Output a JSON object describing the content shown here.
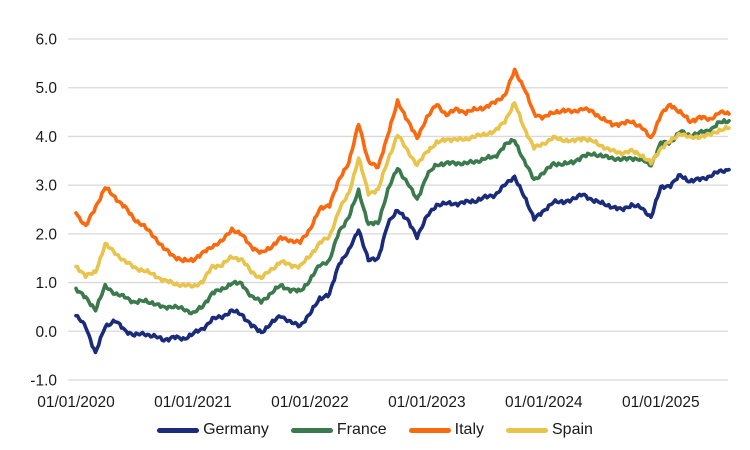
{
  "chart_data": {
    "type": "line",
    "title": "",
    "xlabel": "",
    "ylabel": "",
    "ylim": [
      -1.0,
      6.0
    ],
    "y_tick_labels": [
      "6.0",
      "5.0",
      "4.0",
      "3.0",
      "2.0",
      "1.0",
      "0.0",
      "-1.0"
    ],
    "x_tick_labels": [
      "01/01/2020",
      "01/01/2021",
      "01/01/2022",
      "01/01/2023",
      "01/01/2024",
      "01/01/2025"
    ],
    "x_frequency": "monthly",
    "x_start": "01/2020",
    "x_end": "08/2025",
    "grid": "horizontal",
    "legend_position": "bottom",
    "style": {
      "background": "#ffffff",
      "grid_color": "#d9d9d9",
      "text_color": "#1a1a1a",
      "line_width": 3.6,
      "noise_amplitude": 0.05
    },
    "series": [
      {
        "name": "Germany",
        "color": "#1a2b7a",
        "values": [
          0.32,
          0.1,
          -0.45,
          0.1,
          0.22,
          0.02,
          -0.08,
          -0.05,
          -0.1,
          -0.18,
          -0.12,
          -0.16,
          -0.05,
          0.05,
          0.25,
          0.3,
          0.42,
          0.35,
          0.12,
          -0.02,
          0.15,
          0.33,
          0.18,
          0.12,
          0.35,
          0.68,
          0.75,
          1.4,
          1.65,
          2.1,
          1.45,
          1.5,
          2.2,
          2.5,
          2.28,
          1.95,
          2.35,
          2.6,
          2.62,
          2.62,
          2.65,
          2.68,
          2.75,
          2.8,
          3.0,
          3.18,
          2.75,
          2.33,
          2.45,
          2.68,
          2.63,
          2.73,
          2.8,
          2.7,
          2.62,
          2.56,
          2.49,
          2.6,
          2.53,
          2.35,
          2.95,
          3.0,
          3.2,
          3.08,
          3.12,
          3.18,
          3.28,
          3.32
        ]
      },
      {
        "name": "France",
        "color": "#3b7a4c",
        "values": [
          0.88,
          0.68,
          0.45,
          0.92,
          0.78,
          0.7,
          0.6,
          0.62,
          0.58,
          0.48,
          0.52,
          0.45,
          0.38,
          0.5,
          0.8,
          0.85,
          1.0,
          0.97,
          0.72,
          0.6,
          0.78,
          0.94,
          0.85,
          0.82,
          1.05,
          1.36,
          1.45,
          2.05,
          2.35,
          2.88,
          2.2,
          2.22,
          2.9,
          3.35,
          3.05,
          2.7,
          3.2,
          3.42,
          3.45,
          3.45,
          3.45,
          3.48,
          3.55,
          3.58,
          3.82,
          3.93,
          3.48,
          3.12,
          3.25,
          3.45,
          3.42,
          3.48,
          3.58,
          3.65,
          3.59,
          3.56,
          3.52,
          3.56,
          3.52,
          3.42,
          3.86,
          3.88,
          4.1,
          4.02,
          4.07,
          4.13,
          4.28,
          4.32
        ]
      },
      {
        "name": "Italy",
        "color": "#f96a10",
        "values": [
          2.43,
          2.15,
          2.55,
          2.95,
          2.75,
          2.55,
          2.3,
          2.15,
          1.95,
          1.7,
          1.55,
          1.44,
          1.47,
          1.6,
          1.75,
          1.85,
          2.1,
          1.98,
          1.74,
          1.6,
          1.73,
          1.91,
          1.87,
          1.82,
          2.1,
          2.5,
          2.6,
          3.1,
          3.48,
          4.25,
          3.5,
          3.35,
          4.05,
          4.7,
          4.35,
          3.95,
          4.4,
          4.65,
          4.45,
          4.55,
          4.5,
          4.55,
          4.6,
          4.7,
          4.85,
          5.35,
          5.0,
          4.45,
          4.4,
          4.48,
          4.54,
          4.5,
          4.58,
          4.5,
          4.37,
          4.24,
          4.27,
          4.3,
          4.2,
          3.95,
          4.45,
          4.65,
          4.5,
          4.3,
          4.4,
          4.34,
          4.5,
          4.46
        ]
      },
      {
        "name": "Spain",
        "color": "#e9c44c",
        "values": [
          1.33,
          1.15,
          1.2,
          1.8,
          1.6,
          1.45,
          1.3,
          1.25,
          1.15,
          1.05,
          0.98,
          0.95,
          0.92,
          1.02,
          1.33,
          1.36,
          1.53,
          1.47,
          1.22,
          1.09,
          1.26,
          1.43,
          1.36,
          1.33,
          1.55,
          1.81,
          1.94,
          2.49,
          2.84,
          3.55,
          2.84,
          2.9,
          3.52,
          4.03,
          3.72,
          3.4,
          3.7,
          3.86,
          3.95,
          3.93,
          3.95,
          4.0,
          4.05,
          4.1,
          4.32,
          4.68,
          4.17,
          3.76,
          3.86,
          3.97,
          3.93,
          3.9,
          3.97,
          3.9,
          3.8,
          3.7,
          3.66,
          3.7,
          3.62,
          3.45,
          3.76,
          3.9,
          4.07,
          3.97,
          4.0,
          4.03,
          4.13,
          4.17
        ]
      }
    ]
  }
}
